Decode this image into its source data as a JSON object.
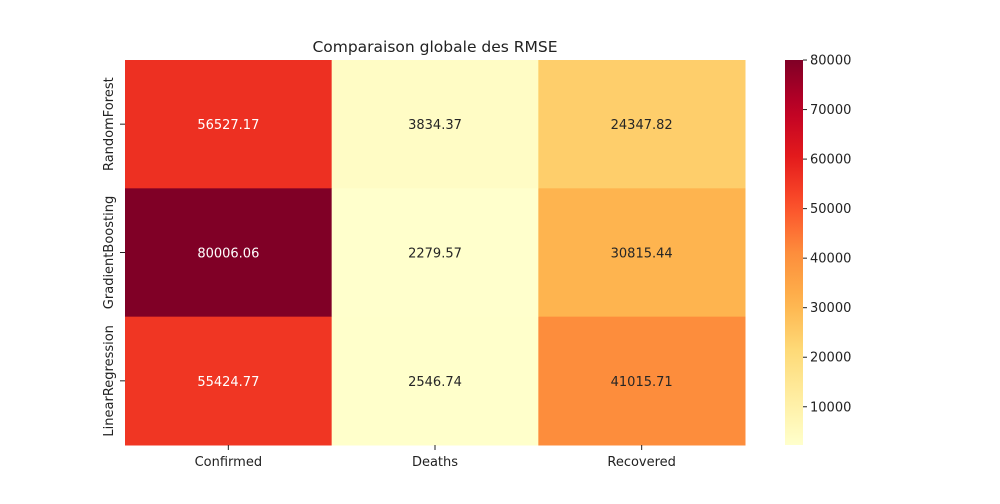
{
  "chart_data": {
    "type": "heatmap",
    "title": "Comparaison globale des RMSE",
    "xlabel": "",
    "ylabel": "",
    "x_categories": [
      "Confirmed",
      "Deaths",
      "Recovered"
    ],
    "y_categories": [
      "RandomForest",
      "GradientBoosting",
      "LinearRegression"
    ],
    "values": [
      [
        56527.17,
        3834.37,
        24347.82
      ],
      [
        80006.06,
        2279.57,
        30815.44
      ],
      [
        55424.77,
        2546.74,
        41015.71
      ]
    ],
    "value_labels": [
      [
        "56527.17",
        "3834.37",
        "24347.82"
      ],
      [
        "80006.06",
        "2279.57",
        "30815.44"
      ],
      [
        "55424.77",
        "2546.74",
        "41015.71"
      ]
    ],
    "colormap": "YlOrRd",
    "colorbar": {
      "range": [
        2279.57,
        80006.06
      ],
      "ticks": [
        10000,
        20000,
        30000,
        40000,
        50000,
        60000,
        70000,
        80000
      ],
      "tick_labels": [
        "10000",
        "20000",
        "30000",
        "40000",
        "50000",
        "60000",
        "70000",
        "80000"
      ]
    },
    "colors": {
      "light_text": "#ffffff",
      "dark_text": "#262626"
    }
  }
}
